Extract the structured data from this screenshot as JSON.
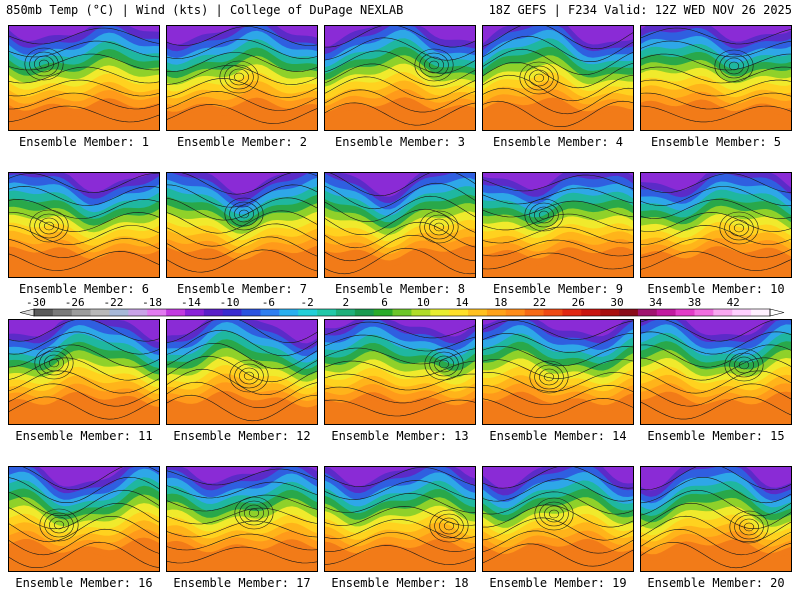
{
  "header": {
    "left": "850mb Temp (°C) | Wind (kts) | College of DuPage NEXLAB",
    "right": "18Z GEFS | F234 Valid: 12Z WED NOV 26 2025"
  },
  "members": [
    {
      "label": "Ensemble Member: 1"
    },
    {
      "label": "Ensemble Member: 2"
    },
    {
      "label": "Ensemble Member: 3"
    },
    {
      "label": "Ensemble Member: 4"
    },
    {
      "label": "Ensemble Member: 5"
    },
    {
      "label": "Ensemble Member: 6"
    },
    {
      "label": "Ensemble Member: 7"
    },
    {
      "label": "Ensemble Member: 8"
    },
    {
      "label": "Ensemble Member: 9"
    },
    {
      "label": "Ensemble Member: 10"
    },
    {
      "label": "Ensemble Member: 11"
    },
    {
      "label": "Ensemble Member: 12"
    },
    {
      "label": "Ensemble Member: 13"
    },
    {
      "label": "Ensemble Member: 14"
    },
    {
      "label": "Ensemble Member: 15"
    },
    {
      "label": "Ensemble Member: 16"
    },
    {
      "label": "Ensemble Member: 17"
    },
    {
      "label": "Ensemble Member: 18"
    },
    {
      "label": "Ensemble Member: 19"
    },
    {
      "label": "Ensemble Member: 20"
    }
  ],
  "colorbar": {
    "tick_labels": [
      "-30",
      "-26",
      "-22",
      "-18",
      "-14",
      "-10",
      "-6",
      "-2",
      "2",
      "6",
      "10",
      "14",
      "18",
      "22",
      "26",
      "30",
      "34",
      "38",
      "42"
    ],
    "colors": [
      "#5a5a5a",
      "#7a7a7a",
      "#9c9c9c",
      "#b9b9b9",
      "#a6b8d8",
      "#c9a3e8",
      "#e27bf0",
      "#c23ae0",
      "#8a22d8",
      "#5a1fc8",
      "#3a2bd0",
      "#2b53e0",
      "#2f7ff0",
      "#2ab0ef",
      "#23d0d8",
      "#22c9a8",
      "#1fb07a",
      "#1a9a50",
      "#2aab2a",
      "#6cc62a",
      "#b0dc2a",
      "#e8ee30",
      "#ffe02a",
      "#ffc11f",
      "#ffa21a",
      "#ff8c1a",
      "#f66a16",
      "#ee4a14",
      "#e02812",
      "#c8140f",
      "#a80f0f",
      "#8a0c1a",
      "#a01470",
      "#c21aa0",
      "#e23cc8",
      "#f06ee0",
      "#f8a8f0",
      "#ffd0ff",
      "#fff0ff"
    ]
  }
}
